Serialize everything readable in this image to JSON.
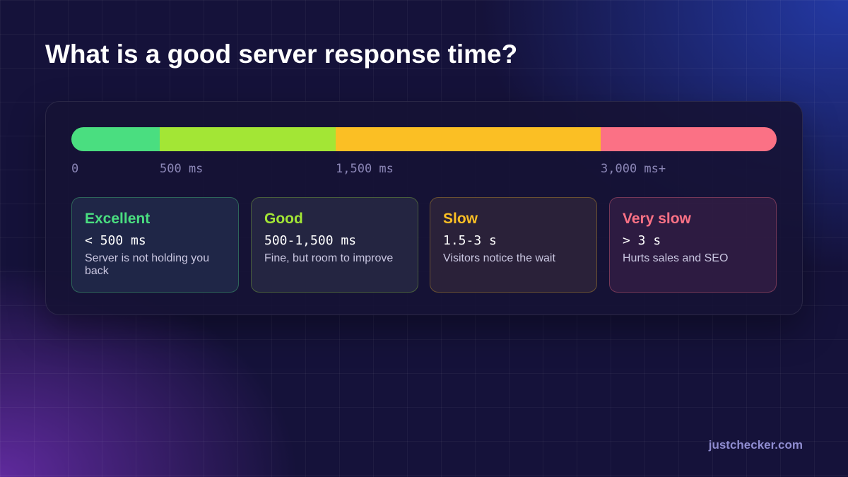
{
  "title": "What is a good server response time?",
  "scale": {
    "labels": [
      "0",
      "500 ms",
      "1,500 ms",
      "3,000 ms+"
    ]
  },
  "cards": [
    {
      "label": "Excellent",
      "range": "< 500 ms",
      "description": "Server is not holding you back"
    },
    {
      "label": "Good",
      "range": "500-1,500 ms",
      "description": "Fine, but room to improve"
    },
    {
      "label": "Slow",
      "range": "1.5-3 s",
      "description": "Visitors notice the wait"
    },
    {
      "label": "Very slow",
      "range": "> 3 s",
      "description": "Hurts sales and SEO"
    }
  ],
  "footer": "justchecker.com"
}
